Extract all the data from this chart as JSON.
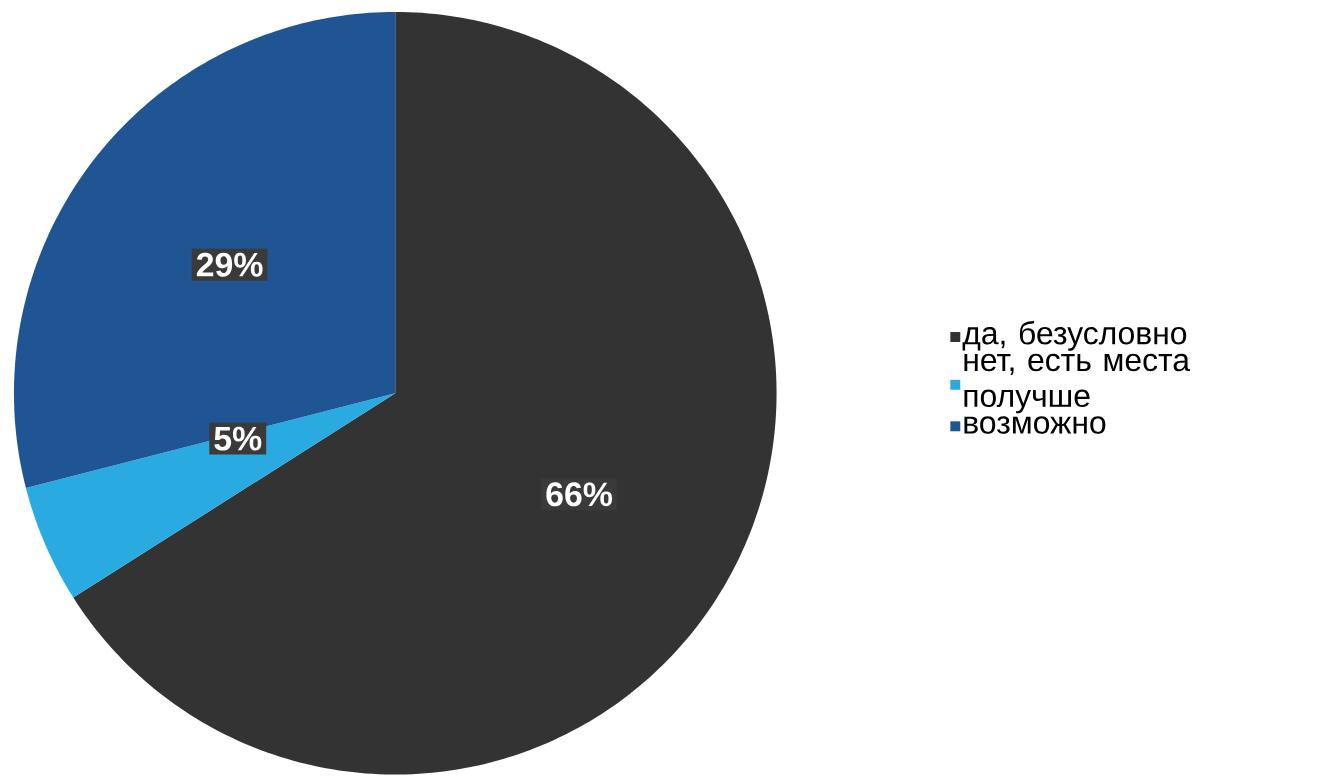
{
  "chart_data": {
    "type": "pie",
    "categories": [
      "да, безусловно",
      "нет, есть места получше",
      "возможно"
    ],
    "values": [
      66,
      5,
      29
    ],
    "colors": [
      "#333333",
      "#29abe2",
      "#1f5592"
    ],
    "value_labels": [
      "66%",
      "5%",
      "29%"
    ],
    "legend": "right"
  }
}
